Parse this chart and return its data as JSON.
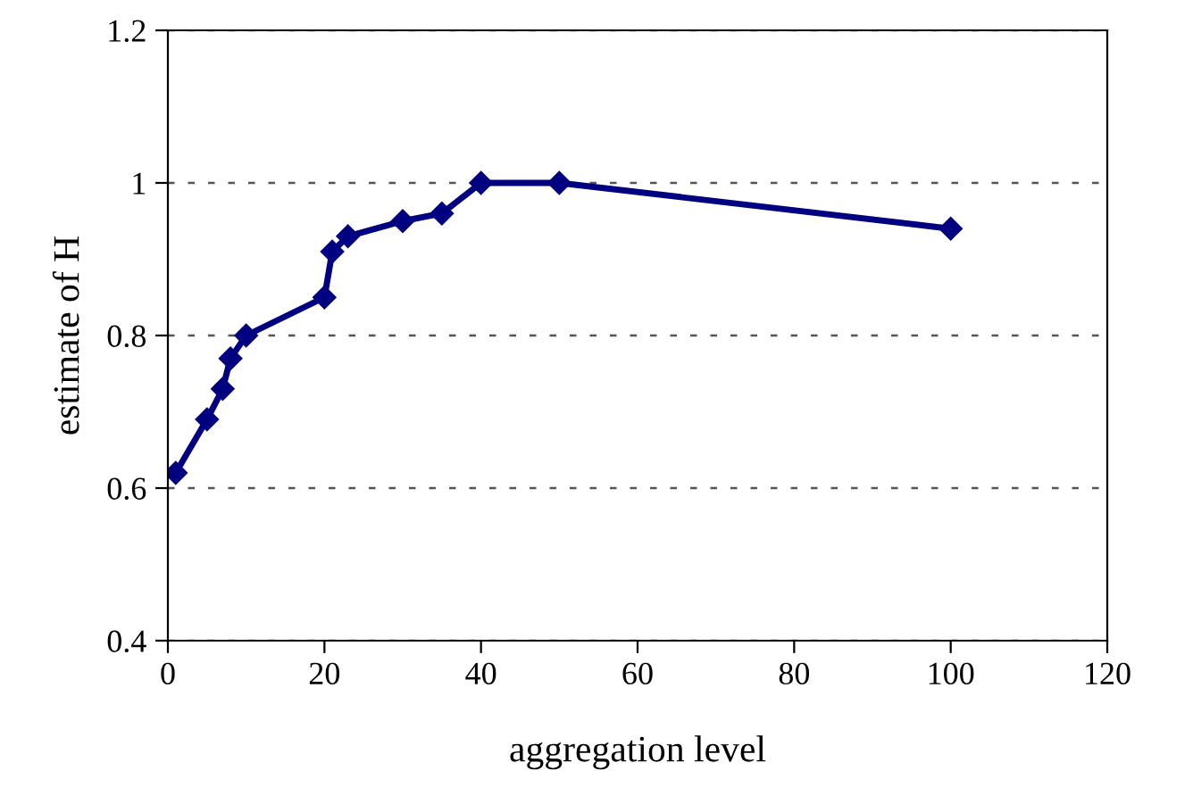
{
  "chart_data": {
    "type": "line",
    "xlabel": "aggregation level",
    "ylabel": "estimate of H",
    "x": [
      1,
      5,
      7,
      8,
      10,
      20,
      21,
      23,
      30,
      35,
      40,
      50,
      100
    ],
    "series": [
      {
        "color": "#000080",
        "values": [
          0.62,
          0.69,
          0.73,
          0.77,
          0.8,
          0.85,
          0.91,
          0.93,
          0.95,
          0.96,
          1.0,
          1.0,
          0.94
        ]
      }
    ],
    "xlim": [
      0,
      120
    ],
    "xticks": [
      0,
      20,
      40,
      60,
      80,
      100,
      120
    ],
    "ylim": [
      0.4,
      1.2
    ],
    "yticks": [
      0.4,
      0.6,
      0.8,
      1,
      1.2
    ],
    "grid": "y",
    "marker": "diamond",
    "line_style": "solid"
  }
}
